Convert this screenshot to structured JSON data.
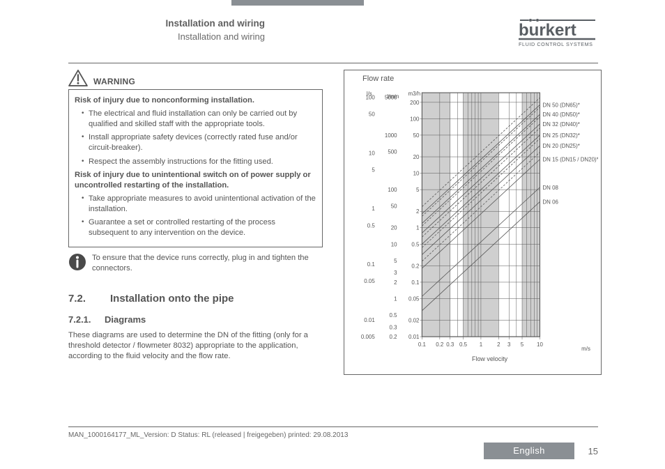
{
  "colors": {
    "accent_grey": "#8a8f94",
    "text": "#5a5a5a",
    "border": "#666666",
    "chart_shade": "#cfcfcf"
  },
  "header": {
    "title": "Installation and wiring",
    "subtitle": "Installation and wiring",
    "logo_name": "burkert",
    "logo_tagline": "FLUID CONTROL SYSTEMS"
  },
  "warning": {
    "label": "WARNING",
    "risk1": "Risk of injury due to nonconforming installation.",
    "bullets1": [
      "The electrical and fluid installation can only be carried out by qualified and skilled staff with the appropriate tools.",
      "Install appropriate safety devices (correctly rated fuse and/or circuit-breaker).",
      "Respect the assembly instructions for the fitting used."
    ],
    "risk2": "Risk of injury due to unintentional switch on of power supply or uncontrolled restarting of the installation.",
    "bullets2": [
      "Take appropriate measures to avoid unintentional activation of the installation.",
      "Guarantee a set or controlled restarting of the process subsequent to any intervention on the device."
    ]
  },
  "note": "To ensure that the device runs correctly, plug in and tighten the connectors.",
  "sections": {
    "s72_num": "7.2.",
    "s72_title": "Installation onto the pipe",
    "s721_num": "7.2.1.",
    "s721_title": "Diagrams",
    "s721_para": "These diagrams are used to determine the DN of the fitting (only for a threshold detector / flowmeter 8032) appropriate to the application, according to the fluid velocity and the flow rate."
  },
  "chart": {
    "title": "Flow rate",
    "y_axes": [
      {
        "unit": "l/s",
        "ticks": [
          "100",
          "50",
          "10",
          "5",
          "1",
          "0.5",
          "0.1",
          "0.05",
          "0.01",
          "0.005"
        ]
      },
      {
        "unit": "l/min",
        "ticks": [
          "5000",
          "1000",
          "500",
          "100",
          "50",
          "20",
          "10",
          "5",
          "3",
          "2",
          "1",
          "0.5",
          "0.3",
          "0.2"
        ]
      },
      {
        "unit": "m3/h",
        "ticks": [
          "200",
          "100",
          "50",
          "20",
          "10",
          "5",
          "2",
          "1",
          "0.5",
          "0.2",
          "0.1",
          "0.05",
          "0.02",
          "0.01"
        ]
      }
    ],
    "x_axis": {
      "unit": "m/s",
      "label": "Flow velocity",
      "ticks": [
        "0.1",
        "0.2",
        "0.3",
        "0.5",
        "1",
        "2",
        "3",
        "5",
        "10"
      ]
    },
    "dn_labels": [
      "DN 50 (DN65)*",
      "DN 40 (DN50)*",
      "DN 32 (DN40)*",
      "DN 25 (DN32)*",
      "DN 20 (DN25)*",
      "DN 15 (DN15 / DN20)*",
      "DN 08",
      "DN 06"
    ],
    "xlog_range": [
      0.1,
      10
    ],
    "shade_bands_x": [
      [
        0.1,
        0.3
      ],
      [
        0.5,
        2
      ],
      [
        5,
        10
      ]
    ],
    "grid_x_minor": [
      0.1,
      0.2,
      0.3,
      0.4,
      0.5,
      0.6,
      0.7,
      0.8,
      0.9,
      1,
      2,
      3,
      4,
      5,
      6,
      7,
      8,
      9,
      10
    ]
  },
  "footer": {
    "doc_id": "MAN_1000164177_ML_Version: D Status: RL (released | freigegeben)  printed: 29.08.2013",
    "language": "English",
    "page": "15"
  }
}
